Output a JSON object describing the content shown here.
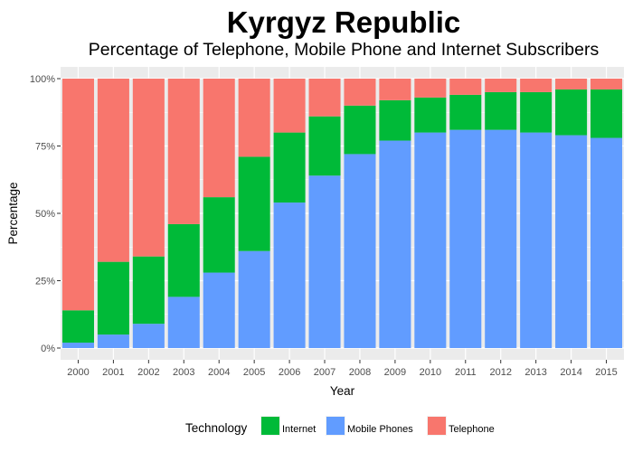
{
  "chart_data": {
    "type": "bar",
    "stacked": true,
    "title": "Kyrgyz Republic",
    "subtitle": "Percentage of Telephone, Mobile Phone and Internet Subscribers",
    "xlabel": "Year",
    "ylabel": "Percentage",
    "ylim": [
      0,
      100
    ],
    "yticks": [
      "0%",
      "25%",
      "50%",
      "75%",
      "100%"
    ],
    "categories": [
      "2000",
      "2001",
      "2002",
      "2003",
      "2004",
      "2005",
      "2006",
      "2007",
      "2008",
      "2009",
      "2010",
      "2011",
      "2012",
      "2013",
      "2014",
      "2015"
    ],
    "series": [
      {
        "name": "Mobile Phones",
        "color": "#619CFF",
        "values": [
          2,
          5,
          9,
          19,
          28,
          36,
          54,
          64,
          72,
          77,
          80,
          81,
          81,
          80,
          79,
          78
        ]
      },
      {
        "name": "Internet",
        "color": "#00BA38",
        "values": [
          12,
          27,
          25,
          27,
          28,
          35,
          26,
          22,
          18,
          15,
          13,
          13,
          14,
          15,
          17,
          18
        ]
      },
      {
        "name": "Telephone",
        "color": "#F8766D",
        "values": [
          86,
          68,
          66,
          54,
          44,
          29,
          20,
          14,
          10,
          8,
          7,
          6,
          5,
          5,
          4,
          4
        ]
      }
    ],
    "grid": true,
    "legend": {
      "title": "Technology",
      "placement": "bottom",
      "items": [
        {
          "label": "Internet",
          "color": "#00BA38"
        },
        {
          "label": "Mobile Phones",
          "color": "#619CFF"
        },
        {
          "label": "Telephone",
          "color": "#F8766D"
        }
      ]
    }
  }
}
